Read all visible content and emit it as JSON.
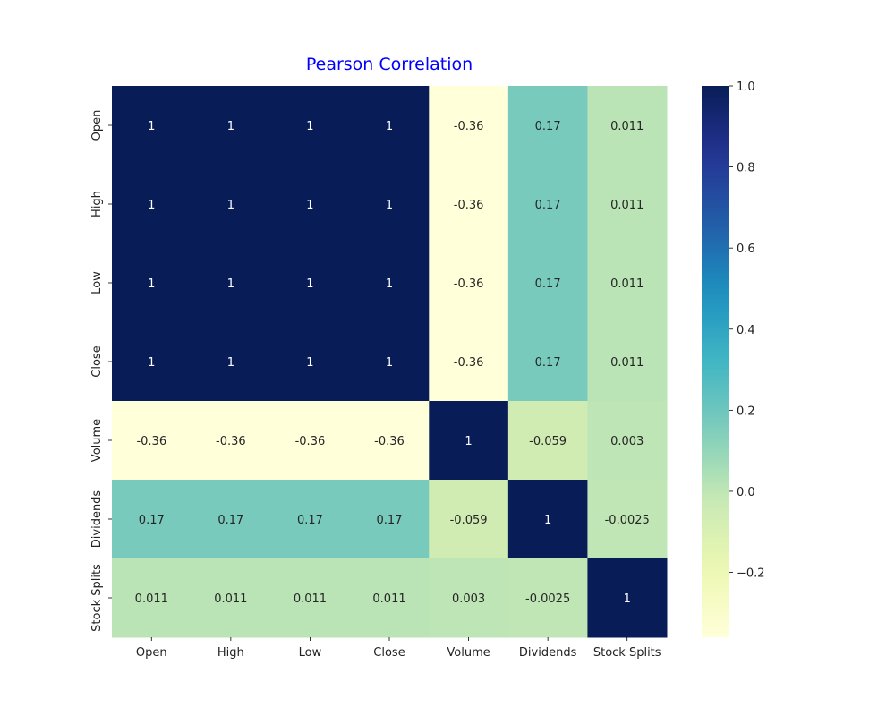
{
  "chart_data": {
    "type": "heatmap",
    "title": "Pearson Correlation",
    "title_color": "#0000ff",
    "x_labels": [
      "Open",
      "High",
      "Low",
      "Close",
      "Volume",
      "Dividends",
      "Stock Splits"
    ],
    "y_labels": [
      "Open",
      "High",
      "Low",
      "Close",
      "Volume",
      "Dividends",
      "Stock Splits"
    ],
    "values": [
      [
        1,
        1,
        1,
        1,
        -0.36,
        0.17,
        0.011
      ],
      [
        1,
        1,
        1,
        1,
        -0.36,
        0.17,
        0.011
      ],
      [
        1,
        1,
        1,
        1,
        -0.36,
        0.17,
        0.011
      ],
      [
        1,
        1,
        1,
        1,
        -0.36,
        0.17,
        0.011
      ],
      [
        -0.36,
        -0.36,
        -0.36,
        -0.36,
        1,
        -0.059,
        0.003
      ],
      [
        0.17,
        0.17,
        0.17,
        0.17,
        -0.059,
        1,
        -0.0025
      ],
      [
        0.011,
        0.011,
        0.011,
        0.011,
        0.003,
        -0.0025,
        1
      ]
    ],
    "labels": [
      [
        "1",
        "1",
        "1",
        "1",
        "-0.36",
        "0.17",
        "0.011"
      ],
      [
        "1",
        "1",
        "1",
        "1",
        "-0.36",
        "0.17",
        "0.011"
      ],
      [
        "1",
        "1",
        "1",
        "1",
        "-0.36",
        "0.17",
        "0.011"
      ],
      [
        "1",
        "1",
        "1",
        "1",
        "-0.36",
        "0.17",
        "0.011"
      ],
      [
        "-0.36",
        "-0.36",
        "-0.36",
        "-0.36",
        "1",
        "-0.059",
        "0.003"
      ],
      [
        "0.17",
        "0.17",
        "0.17",
        "0.17",
        "-0.059",
        "1",
        "-0.0025"
      ],
      [
        "0.011",
        "0.011",
        "0.011",
        "0.011",
        "0.003",
        "-0.0025",
        "1"
      ]
    ],
    "colormap": "YlGnBu",
    "colorbar": {
      "vmin": -0.36,
      "vmax": 1.0,
      "ticks": [
        1.0,
        0.8,
        0.6,
        0.4,
        0.2,
        0.0,
        -0.2
      ],
      "tick_labels": [
        "1.0",
        "0.8",
        "0.6",
        "0.4",
        "0.2",
        "0.0",
        "−0.2"
      ]
    }
  }
}
